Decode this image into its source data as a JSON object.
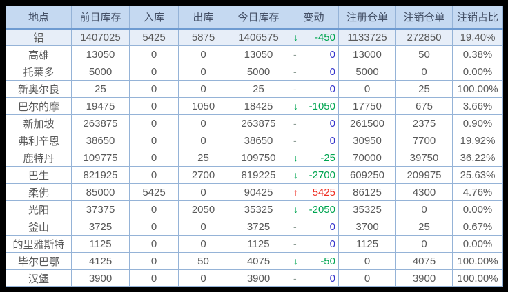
{
  "table": {
    "columns": [
      "地点",
      "前日库存",
      "入库",
      "出库",
      "今日库存",
      "变动",
      "注册仓单",
      "注销仓单",
      "注销占比"
    ],
    "rows": [
      {
        "location": "铝",
        "prev_inventory": "1407025",
        "inbound": "5425",
        "outbound": "5875",
        "today_inventory": "1406575",
        "change": {
          "dir": "down",
          "value": "-450"
        },
        "registered": "1133725",
        "cancelled": "272850",
        "ratio": "19.40%",
        "summary": true
      },
      {
        "location": "高雄",
        "prev_inventory": "13050",
        "inbound": "0",
        "outbound": "0",
        "today_inventory": "13050",
        "change": {
          "dir": "flat",
          "value": "0"
        },
        "registered": "13000",
        "cancelled": "50",
        "ratio": "0.38%",
        "summary": false
      },
      {
        "location": "托莱多",
        "prev_inventory": "5000",
        "inbound": "0",
        "outbound": "0",
        "today_inventory": "5000",
        "change": {
          "dir": "flat",
          "value": "0"
        },
        "registered": "5000",
        "cancelled": "0",
        "ratio": "0.00%",
        "summary": false
      },
      {
        "location": "新奥尔良",
        "prev_inventory": "25",
        "inbound": "0",
        "outbound": "0",
        "today_inventory": "25",
        "change": {
          "dir": "flat",
          "value": "0"
        },
        "registered": "0",
        "cancelled": "25",
        "ratio": "100.00%",
        "summary": false
      },
      {
        "location": "巴尔的摩",
        "prev_inventory": "19475",
        "inbound": "0",
        "outbound": "1050",
        "today_inventory": "18425",
        "change": {
          "dir": "down",
          "value": "-1050"
        },
        "registered": "17750",
        "cancelled": "675",
        "ratio": "3.66%",
        "summary": false
      },
      {
        "location": "新加坡",
        "prev_inventory": "263875",
        "inbound": "0",
        "outbound": "0",
        "today_inventory": "263875",
        "change": {
          "dir": "flat",
          "value": "0"
        },
        "registered": "261500",
        "cancelled": "2375",
        "ratio": "0.90%",
        "summary": false
      },
      {
        "location": "弗利辛恩",
        "prev_inventory": "38650",
        "inbound": "0",
        "outbound": "0",
        "today_inventory": "38650",
        "change": {
          "dir": "flat",
          "value": "0"
        },
        "registered": "30950",
        "cancelled": "7700",
        "ratio": "19.92%",
        "summary": false
      },
      {
        "location": "鹿特丹",
        "prev_inventory": "109775",
        "inbound": "0",
        "outbound": "25",
        "today_inventory": "109750",
        "change": {
          "dir": "down",
          "value": "-25"
        },
        "registered": "70000",
        "cancelled": "39750",
        "ratio": "36.22%",
        "summary": false
      },
      {
        "location": "巴生",
        "prev_inventory": "821925",
        "inbound": "0",
        "outbound": "2700",
        "today_inventory": "819225",
        "change": {
          "dir": "down",
          "value": "-2700"
        },
        "registered": "609250",
        "cancelled": "209975",
        "ratio": "25.63%",
        "summary": false
      },
      {
        "location": "柔佛",
        "prev_inventory": "85000",
        "inbound": "5425",
        "outbound": "0",
        "today_inventory": "90425",
        "change": {
          "dir": "up",
          "value": "5425"
        },
        "registered": "86125",
        "cancelled": "4300",
        "ratio": "4.76%",
        "summary": false
      },
      {
        "location": "光阳",
        "prev_inventory": "37375",
        "inbound": "0",
        "outbound": "2050",
        "today_inventory": "35325",
        "change": {
          "dir": "down",
          "value": "-2050"
        },
        "registered": "35325",
        "cancelled": "0",
        "ratio": "0.00%",
        "summary": false
      },
      {
        "location": "釜山",
        "prev_inventory": "3725",
        "inbound": "0",
        "outbound": "0",
        "today_inventory": "3725",
        "change": {
          "dir": "flat",
          "value": "0"
        },
        "registered": "3700",
        "cancelled": "25",
        "ratio": "0.67%",
        "summary": false
      },
      {
        "location": "的里雅斯特",
        "prev_inventory": "1125",
        "inbound": "0",
        "outbound": "0",
        "today_inventory": "1125",
        "change": {
          "dir": "flat",
          "value": "0"
        },
        "registered": "1125",
        "cancelled": "0",
        "ratio": "0.00%",
        "summary": false
      },
      {
        "location": "毕尔巴鄂",
        "prev_inventory": "4125",
        "inbound": "0",
        "outbound": "50",
        "today_inventory": "4075",
        "change": {
          "dir": "down",
          "value": "-50"
        },
        "registered": "0",
        "cancelled": "4075",
        "ratio": "100.00%",
        "summary": false
      },
      {
        "location": "汉堡",
        "prev_inventory": "3900",
        "inbound": "0",
        "outbound": "0",
        "today_inventory": "3900",
        "change": {
          "dir": "flat",
          "value": "0"
        },
        "registered": "0",
        "cancelled": "3900",
        "ratio": "100.00%",
        "summary": false
      }
    ]
  },
  "symbols": {
    "down": "↓",
    "up": "↑",
    "flat": "-",
    "down_name": "arrow-down-icon",
    "up_name": "arrow-up-icon",
    "flat_name": "dash-icon"
  },
  "colors": {
    "frame_background": "#000000",
    "header_background": "#C5D9F1",
    "header_text": "#445066",
    "cell_text": "#595959",
    "border": "#95B3D7",
    "summary_row_background": "#E7EEF8",
    "decrease_green": "#00A551",
    "increase_red": "#EE3024",
    "zero_blue": "#3333CC",
    "dash_gray": "#8C9C94"
  }
}
